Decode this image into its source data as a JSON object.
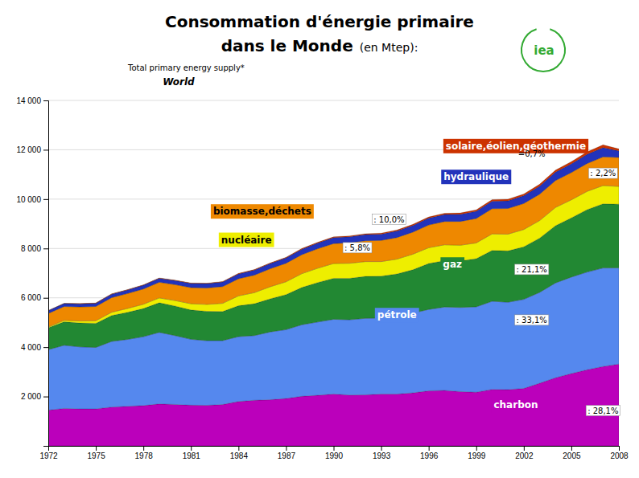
{
  "chart_data": {
    "type": "area",
    "stacked": true,
    "grid": true,
    "title": [
      "Consommation d'énergie primaire",
      "dans le Monde",
      "(en Mtep):"
    ],
    "subtitle": [
      "Total primary energy supply*",
      "World"
    ],
    "annotations": [
      ": 28,1%",
      ": 33,1%",
      ": 21,1%",
      ": 5,8%",
      ": 10,0%",
      ": 2,2%",
      "=0,7%",
      "iea"
    ],
    "x": [
      1972,
      1973,
      1974,
      1975,
      1976,
      1977,
      1978,
      1979,
      1980,
      1981,
      1982,
      1983,
      1984,
      1985,
      1986,
      1987,
      1988,
      1989,
      1990,
      1991,
      1992,
      1993,
      1994,
      1995,
      1996,
      1997,
      1998,
      1999,
      2000,
      2001,
      2002,
      2003,
      2004,
      2005,
      2006,
      2007,
      2008
    ],
    "series": [
      {
        "name": "charbon",
        "color": "#bb00bb",
        "values": [
          1449,
          1518,
          1500,
          1499,
          1574,
          1604,
          1634,
          1700,
          1679,
          1649,
          1644,
          1676,
          1798,
          1849,
          1869,
          1920,
          2010,
          2050,
          2100,
          2060,
          2068,
          2098,
          2098,
          2148,
          2230,
          2248,
          2200,
          2175,
          2290,
          2280,
          2328,
          2540,
          2762,
          2931,
          3085,
          3219,
          3315
        ]
      },
      {
        "name": "pétrole",
        "color": "#5588ee",
        "values": [
          2450,
          2560,
          2510,
          2490,
          2660,
          2710,
          2790,
          2900,
          2790,
          2670,
          2620,
          2590,
          2630,
          2620,
          2750,
          2790,
          2900,
          2970,
          3030,
          3050,
          3100,
          3080,
          3150,
          3230,
          3300,
          3380,
          3410,
          3460,
          3570,
          3540,
          3610,
          3680,
          3840,
          3910,
          3960,
          3990,
          3900
        ]
      },
      {
        "name": "gaz",
        "color": "#228833",
        "values": [
          890,
          950,
          970,
          980,
          1050,
          1100,
          1140,
          1200,
          1200,
          1190,
          1190,
          1180,
          1250,
          1290,
          1340,
          1420,
          1510,
          1600,
          1660,
          1680,
          1700,
          1700,
          1720,
          1760,
          1860,
          1880,
          1890,
          1950,
          2060,
          2080,
          2130,
          2200,
          2320,
          2400,
          2530,
          2600,
          2580
        ]
      },
      {
        "name": "nucléaire",
        "color": "#eeee00",
        "values": [
          29,
          60,
          80,
          100,
          130,
          155,
          175,
          195,
          220,
          250,
          280,
          330,
          400,
          450,
          490,
          520,
          560,
          580,
          600,
          610,
          600,
          590,
          600,
          630,
          640,
          640,
          630,
          640,
          670,
          680,
          700,
          710,
          740,
          730,
          740,
          740,
          720
        ]
      },
      {
        "name": "biomasse,déchets",
        "color": "#ee8800",
        "values": [
          550,
          560,
          570,
          580,
          595,
          605,
          620,
          635,
          645,
          655,
          665,
          680,
          695,
          710,
          730,
          750,
          770,
          790,
          810,
          830,
          845,
          860,
          875,
          895,
          920,
          945,
          965,
          990,
          1020,
          1040,
          1055,
          1070,
          1090,
          1105,
          1130,
          1160,
          1175
        ]
      },
      {
        "name": "hydraulique",
        "color": "#2233bb",
        "values": [
          110,
          120,
          125,
          130,
          140,
          145,
          150,
          160,
          165,
          170,
          175,
          185,
          195,
          205,
          210,
          215,
          220,
          230,
          240,
          245,
          250,
          255,
          265,
          270,
          280,
          285,
          290,
          295,
          305,
          310,
          315,
          325,
          340,
          355,
          370,
          380,
          265
        ]
      },
      {
        "name": "solaire,éolien,géothermie",
        "color": "#cc3300",
        "values": [
          10,
          12,
          12,
          13,
          14,
          15,
          16,
          17,
          18,
          19,
          20,
          21,
          22,
          23,
          24,
          26,
          28,
          30,
          32,
          34,
          36,
          38,
          40,
          43,
          46,
          50,
          54,
          58,
          63,
          68,
          72,
          77,
          83,
          90,
          100,
          110,
          80
        ]
      }
    ],
    "xlim": [
      1972,
      2008
    ],
    "xticks": [
      1972,
      1975,
      1978,
      1981,
      1984,
      1987,
      1990,
      1993,
      1996,
      1999,
      2002,
      2005,
      2008
    ],
    "ylim": [
      0,
      14000
    ],
    "yticks": [
      {
        "value": 0,
        "label": null
      },
      {
        "value": 2000,
        "label": "2 000"
      },
      {
        "value": 4000,
        "label": "4 000"
      },
      {
        "value": 6000,
        "label": "6 000"
      },
      {
        "value": 8000,
        "label": "8 000"
      },
      {
        "value": 10000,
        "label": "10 000"
      },
      {
        "value": 12000,
        "label": "12 000"
      },
      {
        "value": 14000,
        "label": "14 000"
      }
    ]
  }
}
